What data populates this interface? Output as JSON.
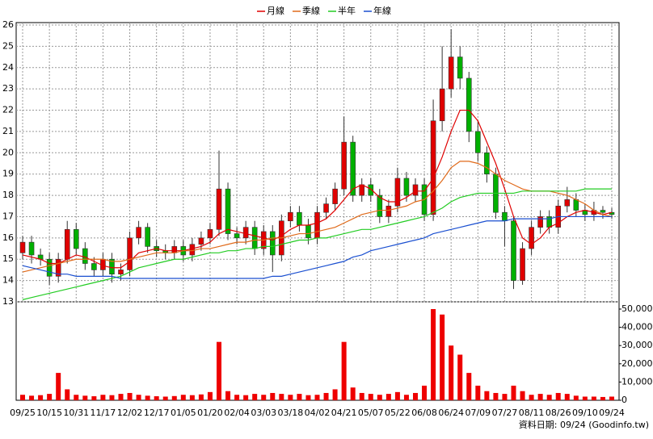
{
  "chart_data": {
    "type": "candlestick",
    "footer": "資料日期: 09/24 (Goodinfo.tw)",
    "categories": [
      "09/25",
      null,
      null,
      "10/15",
      null,
      null,
      "10/31",
      null,
      null,
      "11/17",
      null,
      null,
      "12/02",
      null,
      null,
      "12/17",
      null,
      null,
      "01/05",
      null,
      null,
      "01/20",
      null,
      null,
      "02/04",
      null,
      null,
      "03/03",
      null,
      null,
      "03/18",
      null,
      null,
      "04/02",
      null,
      null,
      "04/21",
      null,
      null,
      "05/07",
      null,
      null,
      "05/22",
      null,
      null,
      "06/08",
      null,
      null,
      "06/24",
      null,
      null,
      "07/09",
      null,
      null,
      "07/27",
      null,
      null,
      "08/11",
      null,
      null,
      "08/26",
      null,
      null,
      "09/10",
      null,
      null,
      "09/24"
    ],
    "open": [
      15.3,
      15.8,
      15.2,
      15.0,
      14.2,
      15.0,
      16.4,
      15.5,
      14.8,
      14.5,
      15.0,
      14.3,
      14.5,
      16.0,
      16.5,
      15.6,
      15.4,
      15.3,
      15.6,
      15.2,
      15.7,
      16.0,
      16.4,
      18.3,
      16.2,
      16.0,
      16.5,
      15.5,
      16.3,
      15.2,
      16.8,
      17.2,
      16.6,
      16.0,
      17.2,
      17.6,
      18.3,
      20.5,
      18.0,
      18.5,
      18.0,
      17.0,
      17.5,
      18.8,
      18.0,
      18.5,
      17.1,
      21.5,
      23.0,
      24.5,
      23.5,
      21.0,
      20.0,
      19.0,
      17.2,
      16.8,
      14.0,
      15.5,
      16.5,
      17.0,
      16.5,
      17.5,
      17.8,
      17.3,
      17.1,
      17.3,
      17.2
    ],
    "high": [
      16.1,
      16.1,
      15.5,
      15.3,
      15.3,
      16.8,
      16.7,
      15.8,
      15.1,
      15.3,
      15.3,
      14.8,
      16.3,
      16.8,
      16.7,
      15.9,
      15.7,
      15.9,
      15.9,
      16.0,
      16.3,
      16.7,
      20.1,
      18.6,
      16.5,
      16.8,
      16.8,
      16.6,
      16.6,
      17.1,
      17.5,
      17.5,
      16.9,
      17.5,
      17.9,
      18.6,
      21.7,
      20.8,
      18.8,
      18.8,
      18.3,
      17.8,
      19.3,
      19.1,
      18.8,
      18.8,
      22.5,
      25.0,
      25.8,
      25.0,
      23.8,
      21.5,
      20.3,
      19.3,
      17.5,
      17.0,
      15.8,
      16.8,
      17.3,
      17.3,
      17.8,
      18.4,
      18.1,
      17.6,
      17.7,
      17.5,
      17.4
    ],
    "low": [
      15.0,
      14.8,
      14.7,
      13.8,
      13.9,
      14.8,
      15.2,
      14.5,
      14.2,
      14.2,
      13.9,
      14.0,
      14.2,
      15.7,
      15.3,
      15.1,
      15.0,
      15.0,
      14.9,
      14.9,
      15.4,
      15.7,
      16.1,
      15.9,
      15.7,
      15.7,
      15.2,
      15.2,
      14.4,
      14.9,
      16.5,
      16.3,
      15.7,
      15.7,
      16.9,
      17.3,
      18.0,
      17.7,
      17.7,
      17.7,
      16.7,
      16.7,
      17.2,
      17.7,
      17.7,
      16.8,
      16.8,
      21.0,
      22.6,
      23.0,
      20.5,
      19.6,
      18.6,
      16.9,
      15.6,
      13.6,
      13.8,
      15.2,
      16.2,
      16.2,
      16.2,
      17.2,
      17.0,
      16.8,
      16.8,
      16.9,
      16.9
    ],
    "close": [
      15.8,
      15.2,
      15.0,
      14.2,
      15.0,
      16.4,
      15.5,
      14.8,
      14.5,
      15.0,
      14.3,
      14.5,
      16.0,
      16.5,
      15.6,
      15.4,
      15.3,
      15.6,
      15.2,
      15.7,
      16.0,
      16.4,
      18.3,
      16.2,
      16.0,
      16.5,
      15.5,
      16.3,
      15.2,
      16.8,
      17.2,
      16.6,
      16.0,
      17.2,
      17.6,
      18.3,
      20.5,
      18.0,
      18.5,
      18.0,
      17.0,
      17.5,
      18.8,
      18.0,
      18.5,
      17.1,
      21.5,
      23.0,
      24.5,
      23.5,
      21.0,
      20.0,
      19.0,
      17.2,
      16.8,
      14.0,
      15.5,
      16.5,
      17.0,
      16.5,
      17.5,
      17.8,
      17.3,
      17.1,
      17.3,
      17.2,
      17.1
    ],
    "volume": [
      3000,
      2500,
      2800,
      3500,
      15000,
      6000,
      3000,
      2500,
      2200,
      3000,
      2800,
      3500,
      4000,
      3000,
      2500,
      2200,
      2000,
      2300,
      3000,
      2800,
      3200,
      4500,
      32000,
      5000,
      3000,
      2800,
      3500,
      3000,
      4000,
      3500,
      3000,
      3500,
      2800,
      3000,
      4000,
      6000,
      32000,
      7000,
      4000,
      3500,
      3000,
      3500,
      4500,
      3000,
      4000,
      8000,
      50000,
      47000,
      30000,
      25000,
      15000,
      8000,
      5000,
      4000,
      3500,
      8000,
      5000,
      3000,
      3500,
      3000,
      4000,
      3500,
      2500,
      2000,
      2000,
      1800,
      2000
    ],
    "up_color": "#e00000",
    "down_color": "#00b000",
    "volume_color": "#ee0000",
    "series": [
      {
        "name": "月線",
        "color": "#e00000",
        "values": [
          15.2,
          15.1,
          15.0,
          14.8,
          14.8,
          15.0,
          15.2,
          15.1,
          14.9,
          14.7,
          14.6,
          14.6,
          14.9,
          15.3,
          15.4,
          15.5,
          15.4,
          15.4,
          15.4,
          15.5,
          15.6,
          15.8,
          16.2,
          16.4,
          16.3,
          16.2,
          16.1,
          16.0,
          15.9,
          16.1,
          16.4,
          16.6,
          16.6,
          16.7,
          16.9,
          17.3,
          17.8,
          18.3,
          18.5,
          18.3,
          17.9,
          17.7,
          17.7,
          17.9,
          18.2,
          18.2,
          18.8,
          19.8,
          21.0,
          22.0,
          22.0,
          21.5,
          20.5,
          19.5,
          18.3,
          17.0,
          16.0,
          15.7,
          16.0,
          16.5,
          16.7,
          17.0,
          17.2,
          17.3,
          17.2,
          17.1,
          17.2
        ]
      },
      {
        "name": "季線",
        "color": "#e06a1a",
        "values": [
          14.4,
          14.5,
          14.6,
          14.7,
          14.8,
          14.9,
          15.0,
          15.0,
          15.0,
          15.0,
          14.9,
          14.9,
          15.0,
          15.1,
          15.2,
          15.3,
          15.3,
          15.3,
          15.4,
          15.4,
          15.5,
          15.5,
          15.6,
          15.7,
          15.8,
          15.8,
          15.9,
          15.9,
          16.0,
          16.0,
          16.1,
          16.2,
          16.2,
          16.3,
          16.4,
          16.5,
          16.7,
          16.9,
          17.1,
          17.2,
          17.3,
          17.3,
          17.4,
          17.5,
          17.7,
          17.8,
          18.2,
          18.7,
          19.3,
          19.6,
          19.6,
          19.5,
          19.3,
          19.0,
          18.7,
          18.5,
          18.3,
          18.2,
          18.2,
          18.2,
          18.1,
          18.0,
          17.8,
          17.6,
          17.3,
          17.1,
          17.0
        ]
      },
      {
        "name": "半年",
        "color": "#22cc22",
        "values": [
          13.1,
          13.2,
          13.3,
          13.4,
          13.5,
          13.6,
          13.7,
          13.8,
          13.9,
          14.0,
          14.1,
          14.2,
          14.4,
          14.6,
          14.7,
          14.8,
          14.9,
          15.0,
          15.0,
          15.1,
          15.2,
          15.3,
          15.3,
          15.4,
          15.4,
          15.5,
          15.5,
          15.6,
          15.6,
          15.7,
          15.8,
          15.9,
          15.9,
          16.0,
          16.0,
          16.1,
          16.2,
          16.3,
          16.4,
          16.4,
          16.5,
          16.6,
          16.7,
          16.8,
          16.9,
          17.0,
          17.2,
          17.4,
          17.7,
          17.9,
          18.0,
          18.1,
          18.1,
          18.1,
          18.1,
          18.1,
          18.2,
          18.2,
          18.2,
          18.2,
          18.2,
          18.2,
          18.2,
          18.3,
          18.3,
          18.3,
          18.3
        ]
      },
      {
        "name": "年線",
        "color": "#1a4fd0",
        "values": [
          14.7,
          14.6,
          14.5,
          14.4,
          14.3,
          14.3,
          14.2,
          14.2,
          14.2,
          14.2,
          14.2,
          14.1,
          14.1,
          14.1,
          14.1,
          14.1,
          14.1,
          14.1,
          14.1,
          14.1,
          14.1,
          14.1,
          14.1,
          14.1,
          14.1,
          14.1,
          14.1,
          14.1,
          14.2,
          14.2,
          14.3,
          14.4,
          14.5,
          14.6,
          14.7,
          14.8,
          14.9,
          15.1,
          15.2,
          15.4,
          15.5,
          15.6,
          15.7,
          15.8,
          15.9,
          16.0,
          16.2,
          16.3,
          16.4,
          16.5,
          16.6,
          16.7,
          16.8,
          16.8,
          16.8,
          16.9,
          16.9,
          16.9,
          16.9,
          16.9,
          17.0,
          17.0,
          17.0,
          17.0,
          17.0,
          17.0,
          17.0
        ]
      }
    ],
    "ylim": [
      13,
      26
    ],
    "yticks": [
      13,
      14,
      15,
      16,
      17,
      18,
      19,
      20,
      21,
      22,
      23,
      24,
      25,
      26
    ],
    "y2lim": [
      0,
      50000
    ],
    "y2ticks": [
      0,
      {
        "value": 10000,
        "label": "10,000"
      },
      {
        "value": 20000,
        "label": "20,000"
      },
      {
        "value": 30000,
        "label": "30,000"
      },
      {
        "value": 40000,
        "label": "40,000"
      },
      {
        "value": 50000,
        "label": "50,000"
      }
    ],
    "grid": true
  }
}
